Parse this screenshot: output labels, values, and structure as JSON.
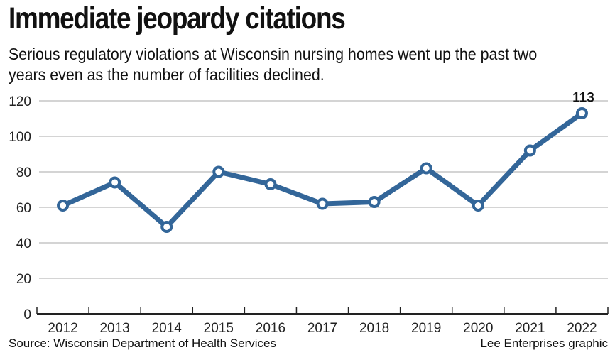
{
  "header": {
    "title": "Immediate jeopardy citations",
    "subtitle": "Serious regulatory violations at Wisconsin nursing homes went up the past two years even as the number of facilities declined."
  },
  "footer": {
    "source": "Source: Wisconsin Department of Health Services",
    "credit": "Lee Enterprises graphic"
  },
  "chart_data": {
    "type": "line",
    "title": "Immediate jeopardy citations",
    "categories": [
      "2012",
      "2013",
      "2014",
      "2015",
      "2016",
      "2017",
      "2018",
      "2019",
      "2020",
      "2021",
      "2022"
    ],
    "series": [
      {
        "values": [
          61,
          74,
          49,
          80,
          73,
          62,
          63,
          82,
          61,
          92,
          113
        ],
        "color": "#336699"
      }
    ],
    "annotations": [
      {
        "category": "2022",
        "label": "113"
      }
    ],
    "ylim": [
      0,
      120
    ],
    "yticks": [
      "0",
      "20",
      "40",
      "60",
      "80",
      "100",
      "120"
    ],
    "grid": true,
    "legend": "none"
  }
}
